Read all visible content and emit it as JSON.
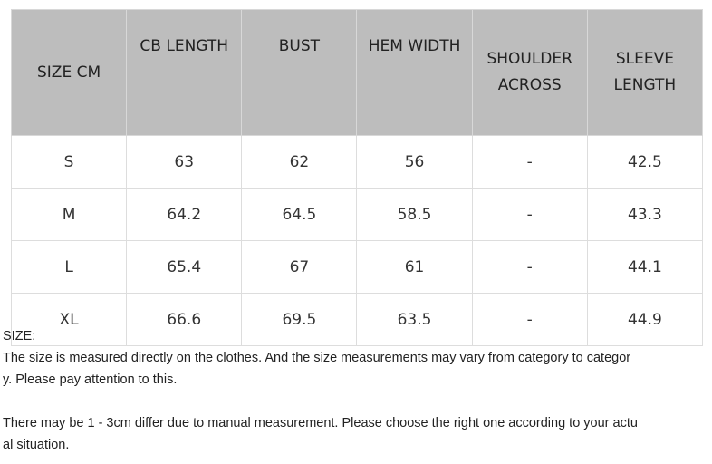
{
  "table": {
    "headers": [
      [
        "SIZE CM"
      ],
      [
        "CB LENGTH"
      ],
      [
        "BUST"
      ],
      [
        "HEM WIDTH"
      ],
      [
        "SHOULDER",
        "ACROSS"
      ],
      [
        "SLEEVE",
        "LENGTH"
      ]
    ],
    "rows": [
      [
        "S",
        "63",
        "62",
        "56",
        "-",
        "42.5"
      ],
      [
        "M",
        "64.2",
        "64.5",
        "58.5",
        "-",
        "43.3"
      ],
      [
        "L",
        "65.4",
        "67",
        "61",
        "-",
        "44.1"
      ],
      [
        "XL",
        "66.6",
        "69.5",
        "63.5",
        "-",
        "44.9"
      ]
    ]
  },
  "notes": {
    "lines": [
      "SIZE:",
      "The size is measured directly on the clothes. And the size measurements may vary  from category to categor",
      "y. Please pay attention to this.",
      "",
      "There may be 1 - 3cm differ due to manual measurement. Please choose the right one according to your actu",
      "al situation."
    ]
  },
  "colors": {
    "header_bg": "#bdbdbd",
    "border": "#dddddd",
    "text": "#333333"
  }
}
